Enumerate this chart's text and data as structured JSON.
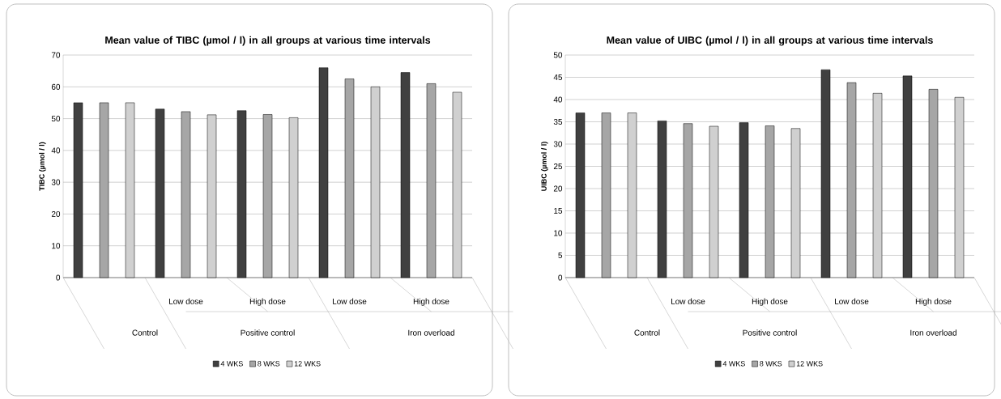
{
  "chart_data": [
    {
      "type": "bar",
      "title": "Mean value of  TIBC (µmol / l) in all groups at various time intervals",
      "ylabel": "TIBC (µmol / l)",
      "categories": [
        null,
        "Low dose",
        "High dose",
        "Low dose",
        "High dose"
      ],
      "annotations": [
        "Control",
        "Positive control",
        "Iron overload"
      ],
      "series": [
        {
          "name": "4 WKS",
          "color": "#404040",
          "values": [
            55,
            53,
            52.5,
            66,
            64.5
          ]
        },
        {
          "name": "8 WKS",
          "color": "#a6a6a6",
          "values": [
            55,
            52.2,
            51.3,
            62.5,
            61
          ]
        },
        {
          "name": "12 WKS",
          "color": "#d0d0d0",
          "values": [
            55,
            51.2,
            50.3,
            60,
            58.3
          ]
        }
      ],
      "ylim": [
        0,
        70
      ],
      "yticks": [
        0,
        10,
        20,
        30,
        40,
        50,
        60,
        70
      ],
      "grid": "y",
      "legend": "bottom"
    },
    {
      "type": "bar",
      "title": "Mean value of  UIBC (µmol / l) in all groups at various time intervals",
      "ylabel": "UIBC (µmol / l)",
      "categories": [
        null,
        "Low dose",
        "High dose",
        "Low dose",
        "High dose"
      ],
      "annotations": [
        "Control",
        "Positive control",
        "Iron overload"
      ],
      "series": [
        {
          "name": "4 WKS",
          "color": "#404040",
          "values": [
            37,
            35.2,
            34.8,
            46.7,
            45.3
          ]
        },
        {
          "name": "8 WKS",
          "color": "#a6a6a6",
          "values": [
            37,
            34.6,
            34.1,
            43.8,
            42.3
          ]
        },
        {
          "name": "12 WKS",
          "color": "#d0d0d0",
          "values": [
            37,
            34,
            33.5,
            41.4,
            40.5
          ]
        }
      ],
      "ylim": [
        0,
        50
      ],
      "yticks": [
        0,
        5,
        10,
        15,
        20,
        25,
        30,
        35,
        40,
        45,
        50
      ],
      "grid": "y",
      "legend": "bottom"
    }
  ]
}
